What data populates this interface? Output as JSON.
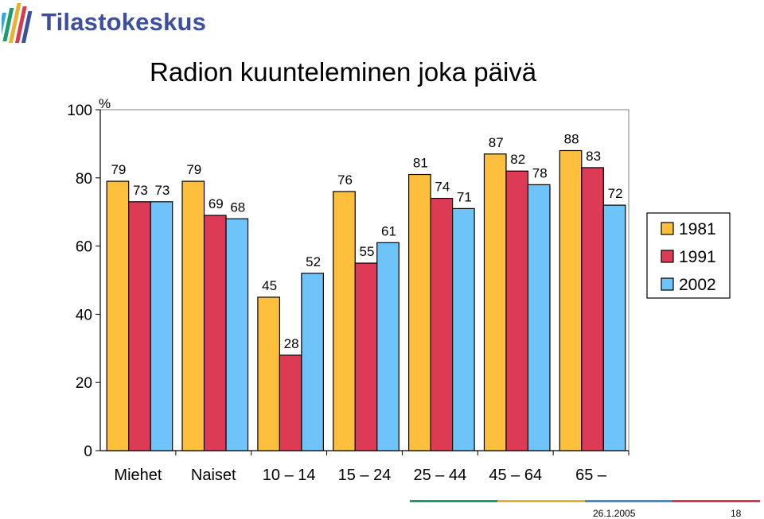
{
  "brand": {
    "name": "Tilastokeskus",
    "logo_icon": "tilastokeskus-bar-logo-icon",
    "colors": [
      "#3c4fa0",
      "#1c9d6c",
      "#e8b22f",
      "#d9394e",
      "#2da8e0"
    ]
  },
  "chart_data": {
    "type": "bar",
    "title": "Radion kuunteleminen joka päivä",
    "ylabel": "%",
    "xlabel": "",
    "ylim": [
      0,
      100
    ],
    "yticks": [
      0,
      20,
      40,
      60,
      80,
      100
    ],
    "grid": false,
    "legend_position": "right",
    "categories": [
      "Miehet",
      "Naiset",
      "10 – 14",
      "15 – 24",
      "25 – 44",
      "45 – 64",
      "65 –"
    ],
    "series": [
      {
        "name": "1981",
        "color": "#FDBF3C",
        "values": [
          79,
          79,
          45,
          76,
          81,
          87,
          88
        ]
      },
      {
        "name": "1991",
        "color": "#DC3A55",
        "values": [
          73,
          69,
          28,
          55,
          74,
          82,
          83
        ]
      },
      {
        "name": "2002",
        "color": "#6EC3F8",
        "values": [
          73,
          68,
          52,
          61,
          71,
          78,
          72
        ]
      }
    ]
  },
  "footer": {
    "date": "26.1.2005",
    "page": "18",
    "stripe_colors": [
      "#1c9d6c",
      "#e8b22f",
      "#3c8fd6",
      "#d9394e"
    ]
  }
}
